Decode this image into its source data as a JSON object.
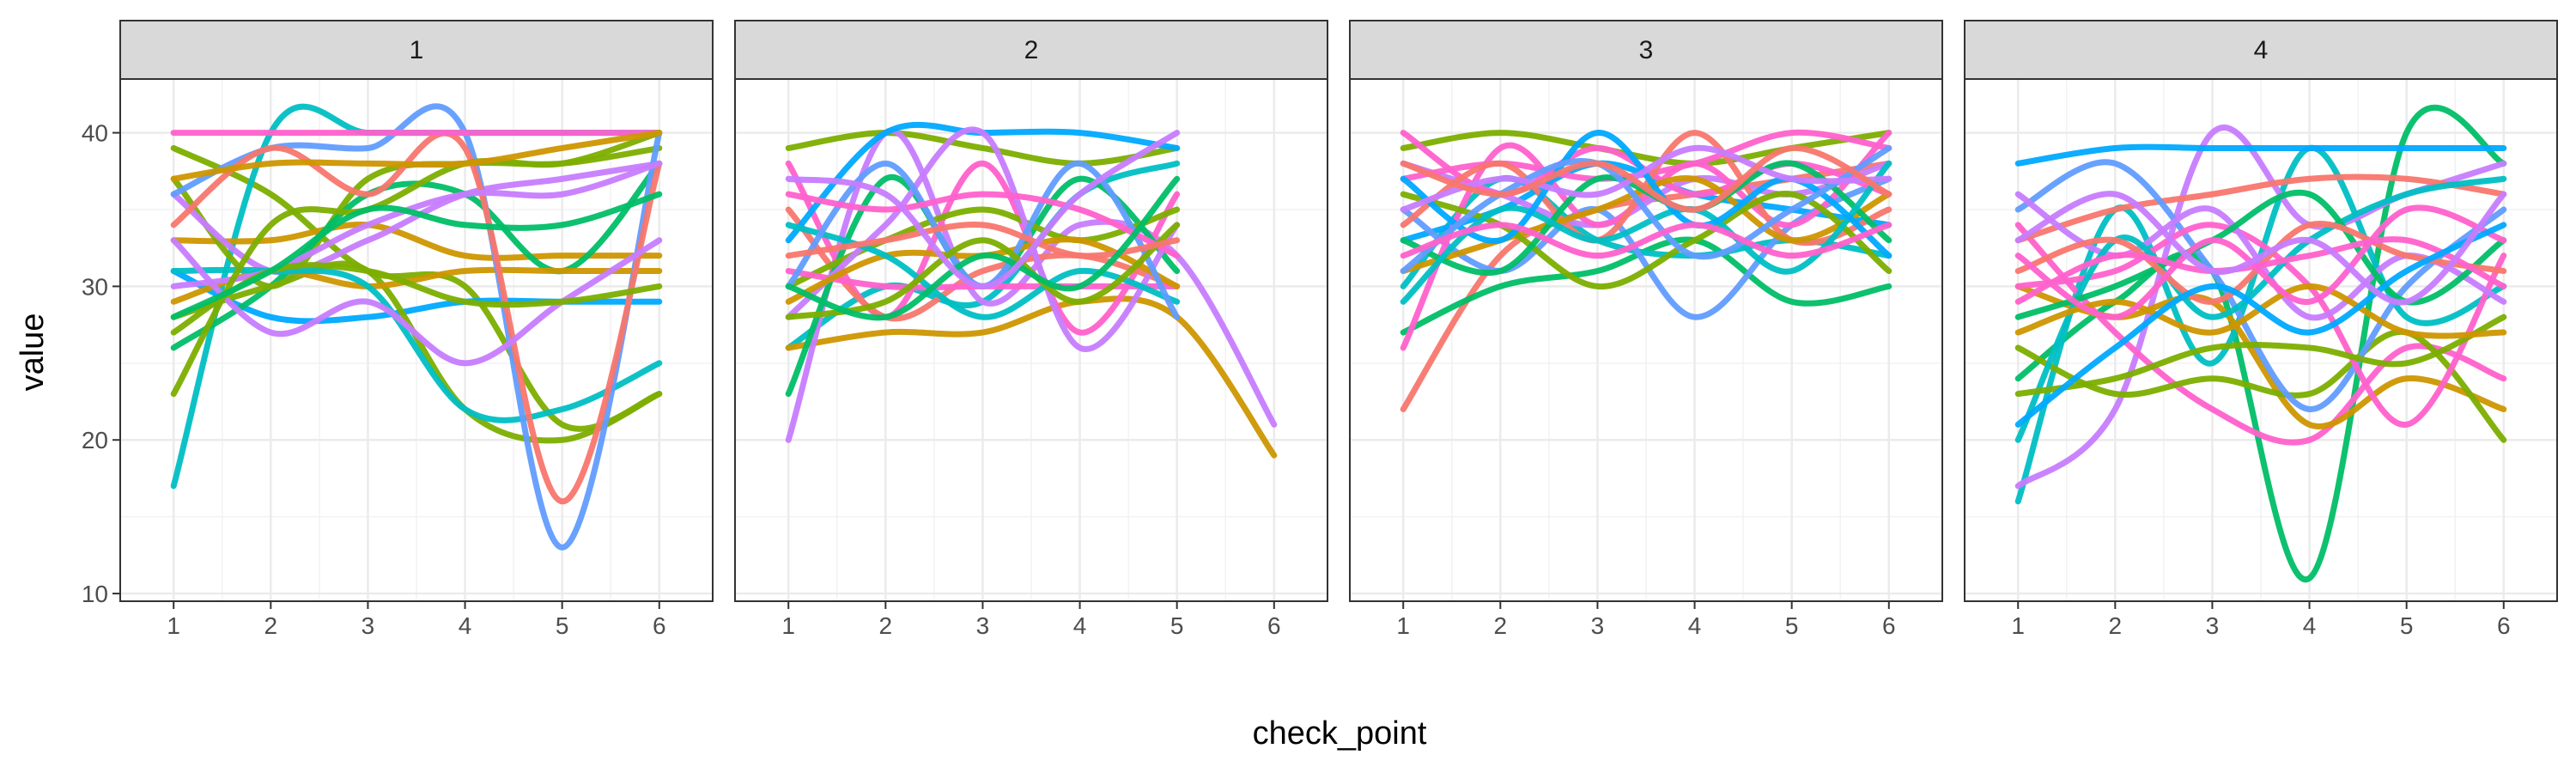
{
  "chart_data": {
    "type": "line",
    "style": "smoothed spaghetti lines, faceted small multiples",
    "xlabel": "check_point",
    "ylabel": "value",
    "x_ticks": [
      1,
      2,
      3,
      4,
      5,
      6
    ],
    "y_ticks": [
      10,
      20,
      30,
      40
    ],
    "xlim": [
      0.45,
      6.55
    ],
    "ylim": [
      9.5,
      43.5
    ],
    "grid": true,
    "legend": "none",
    "palette": [
      "#F8766D",
      "#CD9600",
      "#7CAE00",
      "#00BE67",
      "#00BFC4",
      "#00A9FF",
      "#C77CFF",
      "#FF61CC"
    ],
    "facets": [
      {
        "label": "1",
        "series": [
          {
            "color": "#7CAE00",
            "values": [
              39,
              36,
              31,
              30,
              21,
              23
            ]
          },
          {
            "color": "#00BFC4",
            "values": [
              17,
              40,
              40,
              40,
              40,
              40
            ]
          },
          {
            "color": "#CD9600",
            "values": [
              33,
              33,
              34,
              32,
              32,
              32
            ]
          },
          {
            "color": "#7CAE00",
            "values": [
              37,
              30,
              37,
              38,
              38,
              39
            ]
          },
          {
            "color": "#00A9FF",
            "values": [
              31,
              28,
              28,
              29,
              29,
              29
            ]
          },
          {
            "color": "#C77CFF",
            "values": [
              36,
              31,
              33,
              36,
              37,
              38
            ]
          },
          {
            "color": "#00BE67",
            "values": [
              26,
              30,
              36,
              36,
              31,
              38
            ]
          },
          {
            "color": "#7CAE00",
            "values": [
              28,
              30,
              31,
              22,
              20,
              23
            ]
          },
          {
            "color": "#CD9600",
            "values": [
              29,
              31,
              30,
              31,
              31,
              31
            ]
          },
          {
            "color": "#00BFC4",
            "values": [
              31,
              31,
              30,
              22,
              22,
              25
            ]
          },
          {
            "color": "#619CFF",
            "values": [
              36,
              39,
              39,
              40,
              13,
              40
            ]
          },
          {
            "color": "#F8766D",
            "values": [
              34,
              39,
              36,
              39,
              16,
              38
            ]
          },
          {
            "color": "#FF61CC",
            "values": [
              40,
              40,
              40,
              40,
              40,
              40
            ]
          },
          {
            "color": "#C77CFF",
            "values": [
              33,
              27,
              29,
              25,
              29,
              33
            ]
          },
          {
            "color": "#C77CFF",
            "values": [
              30,
              31,
              34,
              36,
              36,
              38
            ]
          },
          {
            "color": "#7CAE00",
            "values": [
              23,
              34,
              35,
              38,
              38,
              40
            ]
          },
          {
            "color": "#CD9600",
            "values": [
              37,
              38,
              38,
              38,
              39,
              40
            ]
          },
          {
            "color": "#7CAE00",
            "values": [
              27,
              31,
              31,
              29,
              29,
              30
            ]
          },
          {
            "color": "#00BE67",
            "values": [
              28,
              31,
              35,
              34,
              34,
              36
            ]
          }
        ]
      },
      {
        "label": "2",
        "series": [
          {
            "color": "#7CAE00",
            "values": [
              39,
              40,
              39,
              38,
              39
            ]
          },
          {
            "color": "#00BFC4",
            "values": [
              26,
              30,
              29,
              36,
              38
            ]
          },
          {
            "color": "#CD9600",
            "values": [
              26,
              27,
              27,
              29,
              28,
              19
            ]
          },
          {
            "color": "#C77CFF",
            "values": [
              20,
              40,
              29,
              34,
              32,
              21
            ]
          },
          {
            "color": "#FF61CC",
            "values": [
              38,
              28,
              38,
              27,
              36
            ]
          },
          {
            "color": "#F8766D",
            "values": [
              35,
              28,
              31,
              32,
              30
            ]
          },
          {
            "color": "#00BE67",
            "values": [
              23,
              37,
              30,
              37,
              31
            ]
          },
          {
            "color": "#7CAE00",
            "values": [
              30,
              33,
              35,
              33,
              35
            ]
          },
          {
            "color": "#00A9FF",
            "values": [
              33,
              40,
              40,
              40,
              39
            ]
          },
          {
            "color": "#FF61CC",
            "values": [
              31,
              30,
              30,
              30,
              30
            ]
          },
          {
            "color": "#C77CFF",
            "values": [
              28,
              34,
              40,
              26,
              34
            ]
          },
          {
            "color": "#CD9600",
            "values": [
              29,
              32,
              32,
              33,
              30
            ]
          },
          {
            "color": "#00BFC4",
            "values": [
              34,
              32,
              28,
              31,
              29
            ]
          },
          {
            "color": "#619CFF",
            "values": [
              30,
              38,
              30,
              38,
              28
            ]
          },
          {
            "color": "#FF61CC",
            "values": [
              36,
              35,
              36,
              35,
              32
            ]
          },
          {
            "color": "#7CAE00",
            "values": [
              28,
              29,
              33,
              29,
              34
            ]
          },
          {
            "color": "#F8766D",
            "values": [
              32,
              33,
              34,
              32,
              33
            ]
          },
          {
            "color": "#00BE67",
            "values": [
              30,
              28,
              32,
              30,
              37
            ]
          },
          {
            "color": "#C77CFF",
            "values": [
              37,
              36,
              30,
              36,
              40
            ]
          }
        ]
      },
      {
        "label": "3",
        "series": [
          {
            "color": "#F8766D",
            "values": [
              22,
              32,
              35,
              36,
              37,
              38
            ]
          },
          {
            "color": "#00BE67",
            "values": [
              27,
              30,
              31,
              33,
              29,
              30
            ]
          },
          {
            "color": "#7CAE00",
            "values": [
              39,
              40,
              39,
              38,
              39,
              40
            ]
          },
          {
            "color": "#00BFC4",
            "values": [
              30,
              37,
              33,
              32,
              33,
              32
            ]
          },
          {
            "color": "#00A9FF",
            "values": [
              33,
              35,
              38,
              36,
              35,
              34
            ]
          },
          {
            "color": "#619CFF",
            "values": [
              35,
              31,
              35,
              28,
              34,
              37
            ]
          },
          {
            "color": "#C77CFF",
            "values": [
              38,
              36,
              34,
              37,
              36,
              38
            ]
          },
          {
            "color": "#FF61CC",
            "values": [
              26,
              39,
              34,
              38,
              34,
              40
            ]
          },
          {
            "color": "#FF61CC",
            "values": [
              37,
              38,
              37,
              38,
              40,
              39
            ]
          },
          {
            "color": "#FF61CC",
            "values": [
              40,
              36,
              39,
              36,
              38,
              36
            ]
          },
          {
            "color": "#F8766D",
            "values": [
              34,
              38,
              33,
              40,
              33,
              35
            ]
          },
          {
            "color": "#CD9600",
            "values": [
              31,
              33,
              35,
              37,
              33,
              36
            ]
          },
          {
            "color": "#7CAE00",
            "values": [
              36,
              34,
              30,
              33,
              36,
              31
            ]
          },
          {
            "color": "#00BE67",
            "values": [
              33,
              31,
              37,
              35,
              38,
              33
            ]
          },
          {
            "color": "#00BFC4",
            "values": [
              29,
              35,
              33,
              35,
              31,
              38
            ]
          },
          {
            "color": "#00A9FF",
            "values": [
              37,
              33,
              40,
              34,
              37,
              32
            ]
          },
          {
            "color": "#619CFF",
            "values": [
              31,
              36,
              38,
              32,
              35,
              39
            ]
          },
          {
            "color": "#C77CFF",
            "values": [
              35,
              37,
              36,
              39,
              37,
              37
            ]
          },
          {
            "color": "#FF61CC",
            "values": [
              32,
              34,
              32,
              34,
              32,
              34
            ]
          },
          {
            "color": "#F8766D",
            "values": [
              38,
              36,
              38,
              35,
              39,
              36
            ]
          }
        ]
      },
      {
        "label": "4",
        "series": [
          {
            "color": "#00BE67",
            "values": [
              24,
              29,
              31,
              11,
              40,
              38
            ]
          },
          {
            "color": "#00BFC4",
            "values": [
              16,
              35,
              25,
              39,
              28,
              30
            ]
          },
          {
            "color": "#C77CFF",
            "values": [
              17,
              22,
              40,
              34,
              36,
              38
            ]
          },
          {
            "color": "#FF61CC",
            "values": [
              34,
              27,
              22,
              20,
              26,
              24
            ]
          },
          {
            "color": "#F8766D",
            "values": [
              33,
              35,
              36,
              37,
              37,
              36
            ]
          },
          {
            "color": "#CD9600",
            "values": [
              30,
              28,
              29,
              21,
              24,
              22
            ]
          },
          {
            "color": "#7CAE00",
            "values": [
              26,
              23,
              24,
              23,
              27,
              20
            ]
          },
          {
            "color": "#00A9FF",
            "values": [
              38,
              39,
              39,
              39,
              39,
              39
            ]
          },
          {
            "color": "#619CFF",
            "values": [
              35,
              38,
              31,
              22,
              30,
              35
            ]
          },
          {
            "color": "#FF61CC",
            "values": [
              30,
              31,
              34,
              30,
              21,
              32
            ]
          },
          {
            "color": "#C77CFF",
            "values": [
              36,
              32,
              35,
              28,
              32,
              29
            ]
          },
          {
            "color": "#00BFC4",
            "values": [
              20,
              33,
              28,
              33,
              36,
              37
            ]
          },
          {
            "color": "#7CAE00",
            "values": [
              23,
              24,
              26,
              26,
              25,
              28
            ]
          },
          {
            "color": "#00BE67",
            "values": [
              28,
              30,
              33,
              36,
              29,
              33
            ]
          },
          {
            "color": "#CD9600",
            "values": [
              27,
              29,
              27,
              30,
              27,
              27
            ]
          },
          {
            "color": "#F8766D",
            "values": [
              31,
              33,
              29,
              34,
              32,
              31
            ]
          },
          {
            "color": "#FF61CC",
            "values": [
              29,
              32,
              31,
              32,
              33,
              30
            ]
          },
          {
            "color": "#FF61CC",
            "values": [
              32,
              28,
              33,
              29,
              35,
              33
            ]
          },
          {
            "color": "#00A9FF",
            "values": [
              21,
              26,
              30,
              27,
              31,
              34
            ]
          },
          {
            "color": "#C77CFF",
            "values": [
              33,
              36,
              31,
              33,
              29,
              36
            ]
          }
        ]
      }
    ]
  }
}
